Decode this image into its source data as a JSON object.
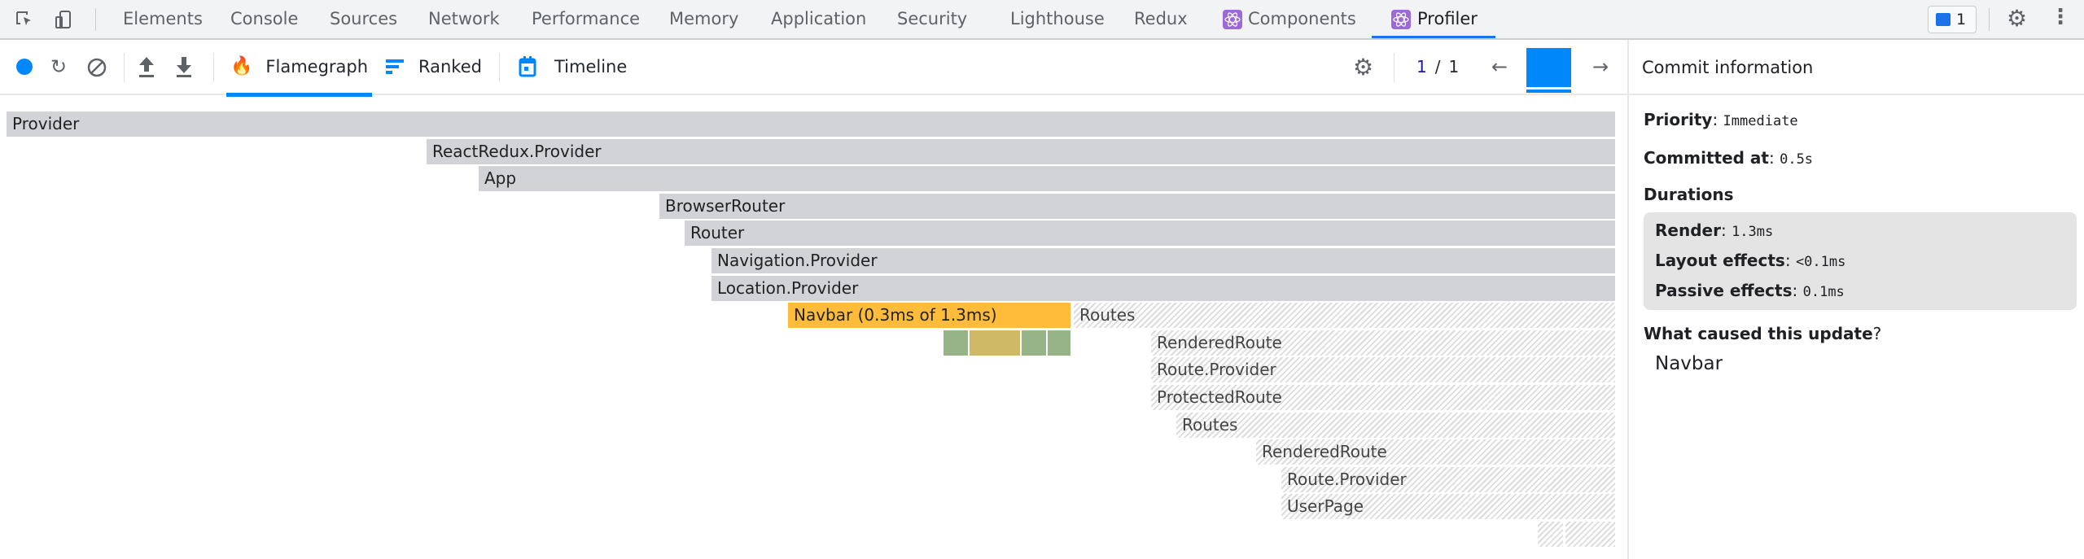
{
  "devtools_tabs": [
    "Elements",
    "Console",
    "Sources",
    "Network",
    "Performance",
    "Memory",
    "Application",
    "Security",
    "Lighthouse",
    "Redux",
    "Components",
    "Profiler"
  ],
  "active_tab": "Profiler",
  "issues_count": "1",
  "toolbar": {
    "flamegraph": "Flamegraph",
    "ranked": "Ranked",
    "timeline": "Timeline",
    "commit_current": "1",
    "commit_sep": "/",
    "commit_total": "1"
  },
  "accent": "#0088fa",
  "flamegraph": {
    "rows": [
      [
        {
          "label": "Provider",
          "kind": "gray"
        }
      ],
      [
        {
          "label": "ReactRedux.Provider",
          "kind": "gray"
        }
      ],
      [
        {
          "label": "App",
          "kind": "gray"
        }
      ],
      [
        {
          "label": "BrowserRouter",
          "kind": "gray"
        }
      ],
      [
        {
          "label": "Router",
          "kind": "gray"
        }
      ],
      [
        {
          "label": "Navigation.Provider",
          "kind": "gray"
        }
      ],
      [
        {
          "label": "Location.Provider",
          "kind": "gray"
        }
      ],
      [
        {
          "label": "Navbar (0.3ms of 1.3ms)",
          "kind": "selected",
          "color": "#ffbc3a"
        },
        {
          "label": "Routes",
          "kind": "hatched"
        }
      ],
      [
        {
          "label": "",
          "kind": "rendered",
          "color": "#97b488"
        },
        {
          "label": "",
          "kind": "rendered",
          "color": "#cfb966"
        },
        {
          "label": "",
          "kind": "rendered",
          "color": "#97b488"
        },
        {
          "label": "",
          "kind": "rendered",
          "color": "#97b488"
        },
        {
          "label": "RenderedRoute",
          "kind": "hatched"
        }
      ],
      [
        {
          "label": "Route.Provider",
          "kind": "hatched"
        }
      ],
      [
        {
          "label": "ProtectedRoute",
          "kind": "hatched"
        }
      ],
      [
        {
          "label": "Routes",
          "kind": "hatched"
        }
      ],
      [
        {
          "label": "RenderedRoute",
          "kind": "hatched"
        }
      ],
      [
        {
          "label": "Route.Provider",
          "kind": "hatched"
        }
      ],
      [
        {
          "label": "UserPage",
          "kind": "hatched"
        }
      ],
      [
        {
          "label": "",
          "kind": "hatched"
        },
        {
          "label": "",
          "kind": "hatched"
        }
      ]
    ]
  },
  "commit_info": {
    "title": "Commit information",
    "priority_label": "Priority",
    "priority": "Immediate",
    "committed_label": "Committed at",
    "committed": "0.5s",
    "durations_label": "Durations",
    "render_label": "Render",
    "render": "1.3ms",
    "layout_label": "Layout effects",
    "layout": "<0.1ms",
    "passive_label": "Passive effects",
    "passive": "0.1ms",
    "cause_label": "What caused this update",
    "cause": "Navbar"
  }
}
